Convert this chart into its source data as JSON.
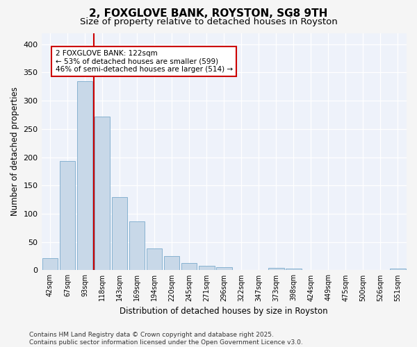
{
  "title": "2, FOXGLOVE BANK, ROYSTON, SG8 9TH",
  "subtitle": "Size of property relative to detached houses in Royston",
  "xlabel": "Distribution of detached houses by size in Royston",
  "ylabel": "Number of detached properties",
  "bar_color": "#c8d8e8",
  "bar_edge_color": "#7aaacc",
  "background_color": "#eef2fa",
  "fig_background_color": "#f5f5f5",
  "grid_color": "#ffffff",
  "categories": [
    "42sqm",
    "67sqm",
    "93sqm",
    "118sqm",
    "143sqm",
    "169sqm",
    "194sqm",
    "220sqm",
    "245sqm",
    "271sqm",
    "296sqm",
    "322sqm",
    "347sqm",
    "373sqm",
    "398sqm",
    "424sqm",
    "449sqm",
    "475sqm",
    "500sqm",
    "526sqm",
    "551sqm"
  ],
  "values": [
    22,
    193,
    335,
    272,
    130,
    87,
    38,
    25,
    13,
    8,
    5,
    0,
    0,
    4,
    3,
    0,
    0,
    0,
    0,
    0,
    3
  ],
  "vline_x_index": 3,
  "vline_color": "#cc0000",
  "annotation_text": "2 FOXGLOVE BANK: 122sqm\n← 53% of detached houses are smaller (599)\n46% of semi-detached houses are larger (514) →",
  "annotation_box_color": "#cc0000",
  "ylim": [
    0,
    420
  ],
  "yticks": [
    0,
    50,
    100,
    150,
    200,
    250,
    300,
    350,
    400
  ],
  "footer": "Contains HM Land Registry data © Crown copyright and database right 2025.\nContains public sector information licensed under the Open Government Licence v3.0.",
  "title_fontsize": 11,
  "subtitle_fontsize": 9.5,
  "tick_fontsize": 7,
  "label_fontsize": 8.5,
  "annotation_fontsize": 7.5,
  "footer_fontsize": 6.5
}
